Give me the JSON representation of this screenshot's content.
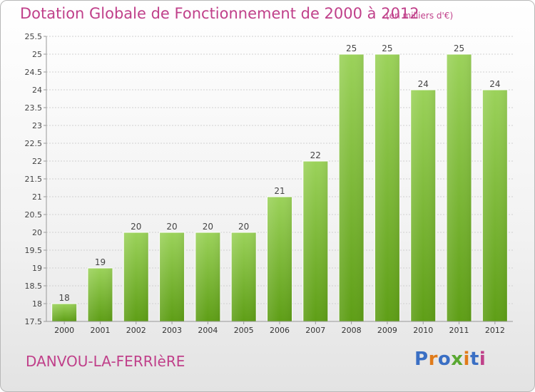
{
  "header": {
    "title": "Dotation Globale de Fonctionnement de 2000 à 2012",
    "subtitle": "(en milliers d'€)"
  },
  "footer": {
    "commune": "DANVOU-LA-FERRIèRE",
    "logo_text": "Proxiti",
    "logo_colors": [
      "#3a6fc4",
      "#e07b1a",
      "#3a6fc4",
      "#5aa832",
      "#e07b1a",
      "#3a6fc4",
      "#c0408a"
    ]
  },
  "colors": {
    "text_accent": "#c0408a",
    "bar_top": "#9bd25a",
    "bar_bottom": "#5e9e16",
    "grid": "#d0d0d0"
  },
  "chart_data": {
    "type": "bar",
    "title": "Dotation Globale de Fonctionnement de 2000 à 2012",
    "subtitle": "(en milliers d'€)",
    "categories": [
      "2000",
      "2001",
      "2002",
      "2003",
      "2004",
      "2005",
      "2006",
      "2007",
      "2008",
      "2009",
      "2010",
      "2011",
      "2012"
    ],
    "values": [
      18,
      19,
      20,
      20,
      20,
      20,
      21,
      22,
      25,
      25,
      24,
      25,
      24
    ],
    "data_labels": [
      "18",
      "19",
      "20",
      "20",
      "20",
      "20",
      "21",
      "22",
      "25",
      "25",
      "24",
      "25",
      "24"
    ],
    "ylim": [
      17.5,
      25.5
    ],
    "yticks": [
      17.5,
      18,
      18.5,
      19,
      19.5,
      20,
      20.5,
      21,
      21.5,
      22,
      22.5,
      23,
      23.5,
      24,
      24.5,
      25,
      25.5
    ],
    "ytick_labels": [
      "17.5",
      "18",
      "18.5",
      "19",
      "19.5",
      "20",
      "20.5",
      "21",
      "21.5",
      "22",
      "22.5",
      "23",
      "23.5",
      "24",
      "24.5",
      "25",
      "25.5"
    ],
    "grid": true,
    "xlabel": "",
    "ylabel": ""
  }
}
